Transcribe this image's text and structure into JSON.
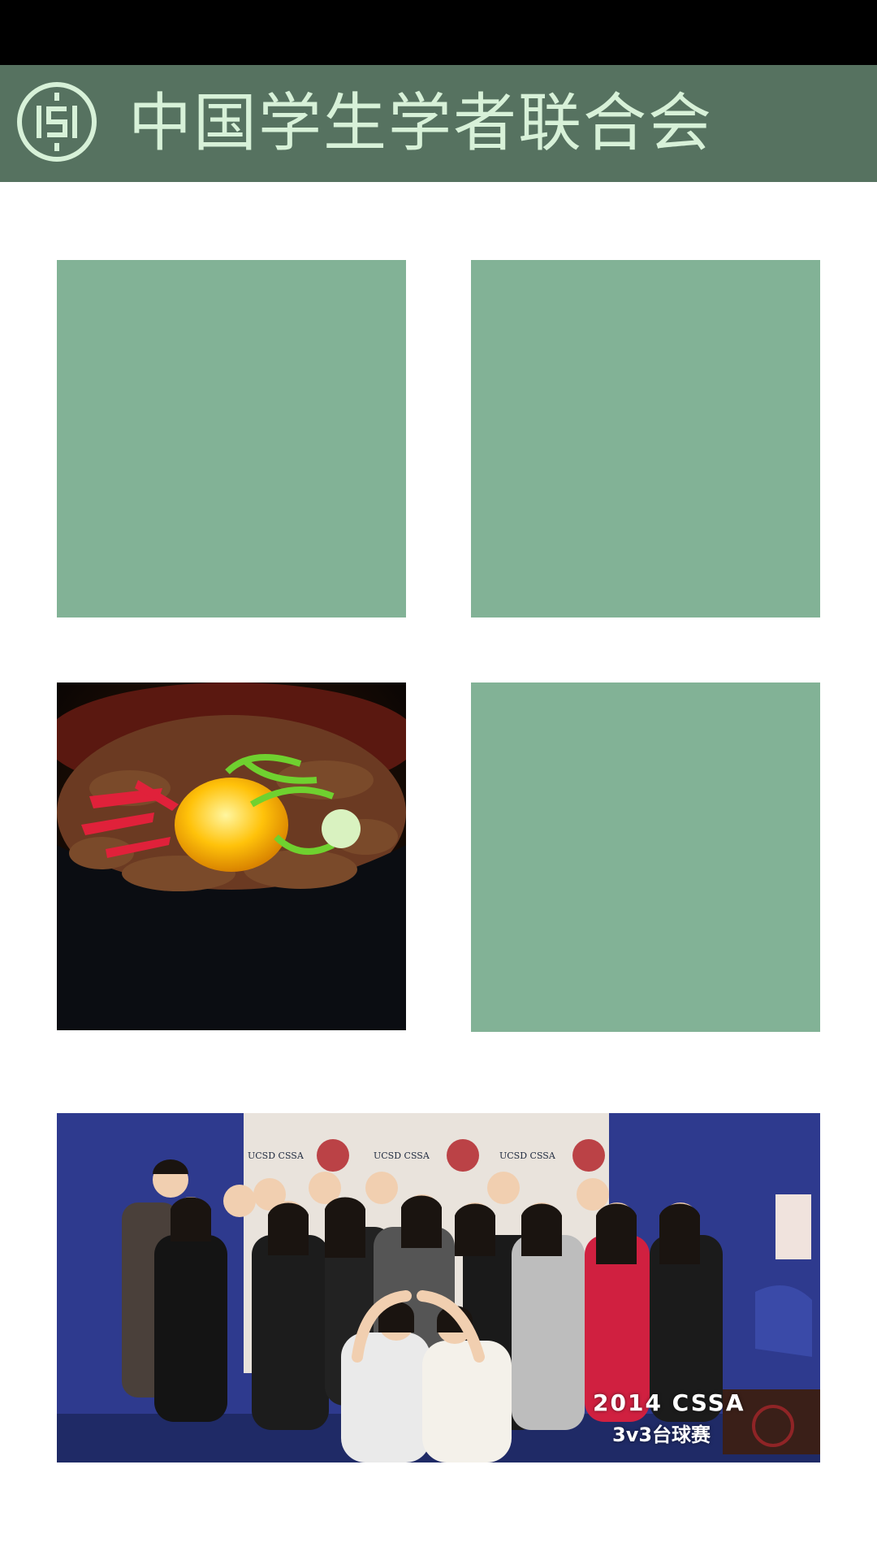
{
  "header": {
    "title": "中国学生学者联合会",
    "logo_icon": "cssa-logo-icon"
  },
  "colors": {
    "status_bar": "#000000",
    "header_bg": "#567260",
    "header_text": "#d7f1d8",
    "placeholder_tile": "#82b296"
  },
  "tiles": [
    {
      "name": "tile-top-left",
      "content": "placeholder"
    },
    {
      "name": "tile-top-right",
      "content": "placeholder"
    },
    {
      "name": "tile-food-photo",
      "content": "beef-rice-bowl-photo"
    },
    {
      "name": "tile-middle-right",
      "content": "placeholder"
    }
  ],
  "banner": {
    "photo": "group-photo",
    "backdrop_text": "UCSD CSSA",
    "overlay_line1": "2014 CSSA",
    "overlay_line2": "3v3台球赛"
  }
}
